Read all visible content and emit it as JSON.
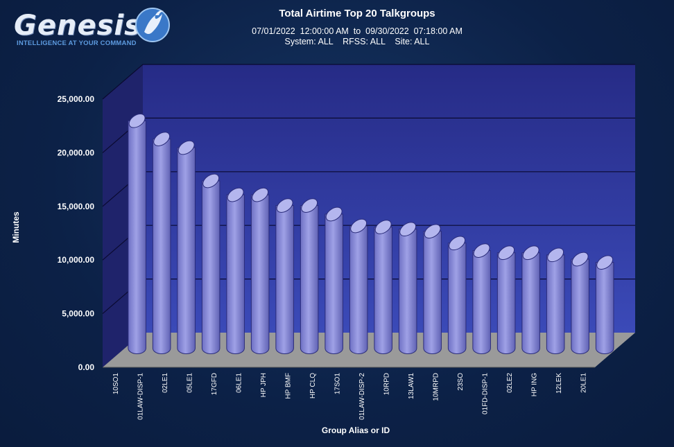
{
  "logo": {
    "wordmark": "Genesis",
    "tagline": "INTELLIGENCE AT YOUR COMMAND"
  },
  "chart_data": {
    "type": "bar",
    "title": "Total Airtime Top 20 Talkgroups",
    "subtitle": "07/01/2022  12:00:00 AM  to  09/30/2022  07:18:00 AM",
    "subtitle2": "System: ALL    RFSS: ALL    Site: ALL",
    "xlabel": "Group Alias or ID",
    "ylabel": "Minutes",
    "ylim": [
      0,
      25000
    ],
    "yticks": [
      "0.00",
      "5,000.00",
      "10,000.00",
      "15,000.00",
      "20,000.00",
      "25,000.00"
    ],
    "grid": true,
    "categories": [
      "10SO1",
      "01LAW-DISP-1",
      "02LE1",
      "05LE1",
      "17GFD",
      "06LE1",
      "HP JPH",
      "HP BMF",
      "HP CLQ",
      "17SO1",
      "01LAW-DISP-2",
      "10RPD",
      "13LAW1",
      "10MRPD",
      "23SO",
      "01FD-DISP-1",
      "02LE2",
      "HP ING",
      "12LEK",
      "20LE1"
    ],
    "values": [
      21200,
      19500,
      18700,
      15600,
      14300,
      14300,
      13300,
      13300,
      12500,
      11400,
      11300,
      11100,
      10900,
      9800,
      9100,
      8900,
      8900,
      8700,
      8300,
      8000
    ],
    "colors": {
      "bar": "#8d8fd8",
      "bar_top": "#b4b6ee",
      "bar_dark": "#5c5eb0",
      "wall": "#2e3aa8",
      "side_wall": "#1f236b",
      "floor": "#9a9a9a",
      "gridline": "#0a0a30"
    }
  }
}
